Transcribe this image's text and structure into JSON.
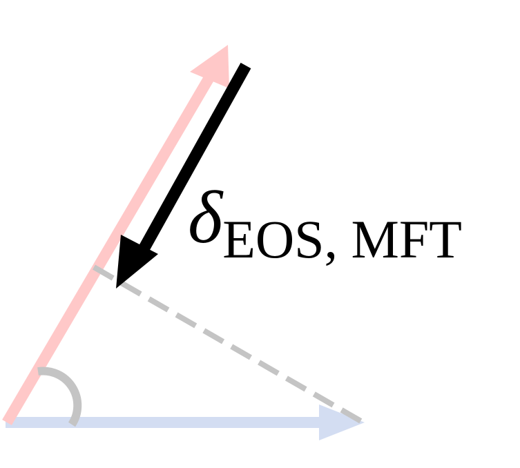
{
  "label": {
    "symbol": "δ",
    "subscript": "EOS, MFT"
  },
  "colors": {
    "red_vector": "#ffc8c8",
    "blue_vector": "#d3ddf2",
    "projection_line": "#c4c4c4",
    "angle_arc": "#c4c4c4",
    "delta_arrow": "#000000"
  }
}
